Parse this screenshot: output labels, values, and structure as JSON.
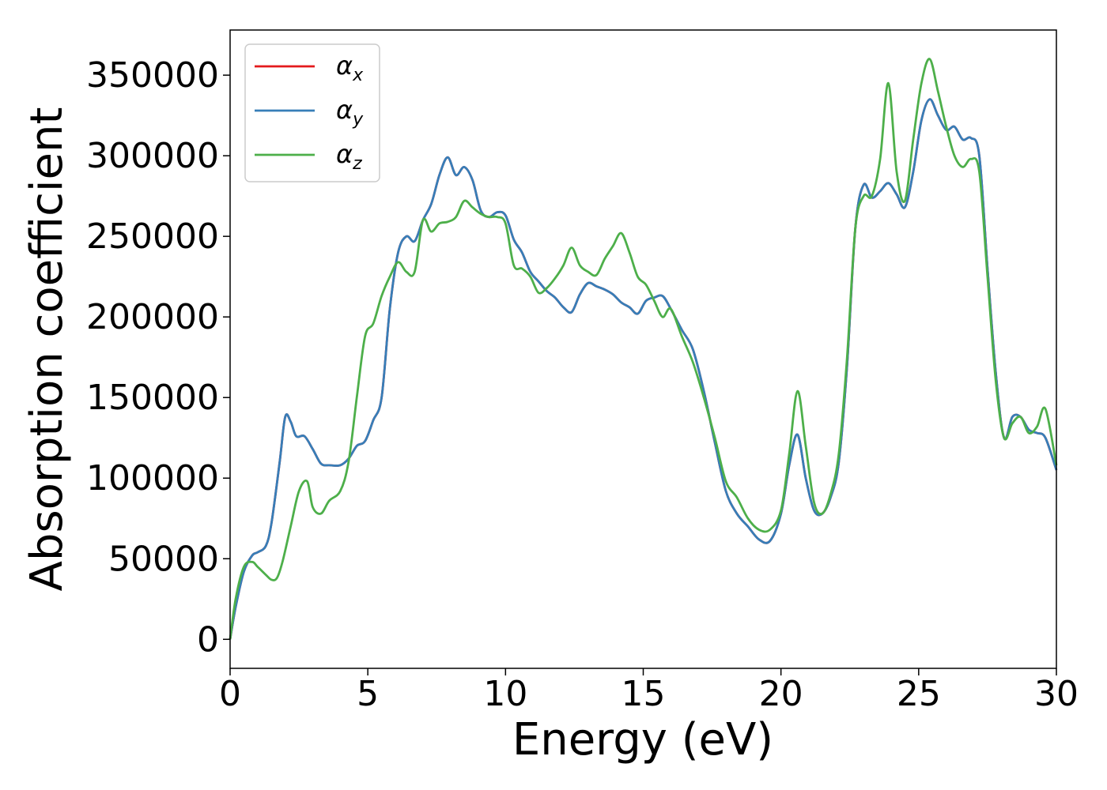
{
  "chart_data": {
    "type": "line",
    "xlabel": "Energy (eV)",
    "ylabel": "Absorption coefficient",
    "xlim": [
      0,
      30
    ],
    "ylim": [
      -18000,
      378000
    ],
    "xticks": [
      0,
      5,
      10,
      15,
      20,
      25,
      30
    ],
    "xtick_labels": [
      "0",
      "5",
      "10",
      "15",
      "20",
      "25",
      "30"
    ],
    "yticks": [
      0,
      50000,
      100000,
      150000,
      200000,
      250000,
      300000,
      350000
    ],
    "ytick_labels": [
      "0",
      "50000",
      "100000",
      "150000",
      "200000",
      "250000",
      "300000",
      "350000"
    ],
    "grid": false,
    "legend_position": "top-left",
    "series": [
      {
        "name": "α",
        "subscript": "x",
        "color": "#e41a1c",
        "x": [
          0,
          0.2,
          0.5,
          0.8,
          1.0,
          1.3,
          1.5,
          1.8,
          2.0,
          2.2,
          2.4,
          2.7,
          3.0,
          3.3,
          3.6,
          4.0,
          4.3,
          4.6,
          4.9,
          5.2,
          5.5,
          5.8,
          6.1,
          6.4,
          6.7,
          7.0,
          7.3,
          7.6,
          7.9,
          8.2,
          8.5,
          8.8,
          9.1,
          9.4,
          9.7,
          10.0,
          10.3,
          10.6,
          10.9,
          11.2,
          11.5,
          11.8,
          12.1,
          12.4,
          12.7,
          13.0,
          13.3,
          13.6,
          13.9,
          14.2,
          14.5,
          14.8,
          15.1,
          15.4,
          15.7,
          16.0,
          16.4,
          16.8,
          17.2,
          17.6,
          18.0,
          18.4,
          18.8,
          19.2,
          19.6,
          20.0,
          20.3,
          20.6,
          20.9,
          21.2,
          21.5,
          21.8,
          22.1,
          22.4,
          22.7,
          23.0,
          23.3,
          23.6,
          23.9,
          24.2,
          24.5,
          24.8,
          25.1,
          25.4,
          25.7,
          26.0,
          26.3,
          26.6,
          26.9,
          27.2,
          27.5,
          27.8,
          28.1,
          28.4,
          28.7,
          29.0,
          29.3,
          29.6,
          30.0
        ],
        "y": [
          0,
          20000,
          42000,
          52000,
          54000,
          58000,
          72000,
          110000,
          138000,
          135000,
          126000,
          126000,
          118000,
          109000,
          108000,
          108000,
          112000,
          120000,
          123000,
          136000,
          150000,
          205000,
          240000,
          250000,
          247000,
          260000,
          270000,
          288000,
          299000,
          288000,
          293000,
          285000,
          266000,
          262000,
          265000,
          263000,
          248000,
          240000,
          228000,
          222000,
          216000,
          212000,
          206000,
          203000,
          214000,
          221000,
          219000,
          217000,
          214000,
          209000,
          206000,
          202000,
          210000,
          212000,
          213000,
          205000,
          192000,
          180000,
          154000,
          122000,
          92000,
          78000,
          70000,
          62000,
          61000,
          78000,
          108000,
          127000,
          100000,
          80000,
          78000,
          88000,
          110000,
          170000,
          255000,
          282000,
          274000,
          278000,
          283000,
          276000,
          268000,
          290000,
          322000,
          335000,
          325000,
          316000,
          318000,
          310000,
          311000,
          300000,
          230000,
          165000,
          125000,
          138000,
          138000,
          130000,
          128000,
          125000,
          105000
        ]
      },
      {
        "name": "α",
        "subscript": "y",
        "color": "#377eb8",
        "x": [
          0,
          0.2,
          0.5,
          0.8,
          1.0,
          1.3,
          1.5,
          1.8,
          2.0,
          2.2,
          2.4,
          2.7,
          3.0,
          3.3,
          3.6,
          4.0,
          4.3,
          4.6,
          4.9,
          5.2,
          5.5,
          5.8,
          6.1,
          6.4,
          6.7,
          7.0,
          7.3,
          7.6,
          7.9,
          8.2,
          8.5,
          8.8,
          9.1,
          9.4,
          9.7,
          10.0,
          10.3,
          10.6,
          10.9,
          11.2,
          11.5,
          11.8,
          12.1,
          12.4,
          12.7,
          13.0,
          13.3,
          13.6,
          13.9,
          14.2,
          14.5,
          14.8,
          15.1,
          15.4,
          15.7,
          16.0,
          16.4,
          16.8,
          17.2,
          17.6,
          18.0,
          18.4,
          18.8,
          19.2,
          19.6,
          20.0,
          20.3,
          20.6,
          20.9,
          21.2,
          21.5,
          21.8,
          22.1,
          22.4,
          22.7,
          23.0,
          23.3,
          23.6,
          23.9,
          24.2,
          24.5,
          24.8,
          25.1,
          25.4,
          25.7,
          26.0,
          26.3,
          26.6,
          26.9,
          27.2,
          27.5,
          27.8,
          28.1,
          28.4,
          28.7,
          29.0,
          29.3,
          29.6,
          30.0
        ],
        "y": [
          0,
          20000,
          42000,
          52000,
          54000,
          58000,
          72000,
          110000,
          138000,
          135000,
          126000,
          126000,
          118000,
          109000,
          108000,
          108000,
          112000,
          120000,
          123000,
          136000,
          150000,
          205000,
          240000,
          250000,
          247000,
          260000,
          270000,
          288000,
          299000,
          288000,
          293000,
          285000,
          266000,
          262000,
          265000,
          263000,
          248000,
          240000,
          228000,
          222000,
          216000,
          212000,
          206000,
          203000,
          214000,
          221000,
          219000,
          217000,
          214000,
          209000,
          206000,
          202000,
          210000,
          212000,
          213000,
          205000,
          192000,
          180000,
          154000,
          122000,
          92000,
          78000,
          70000,
          62000,
          61000,
          78000,
          108000,
          127000,
          100000,
          80000,
          78000,
          88000,
          110000,
          170000,
          255000,
          282000,
          274000,
          278000,
          283000,
          276000,
          268000,
          290000,
          322000,
          335000,
          325000,
          316000,
          318000,
          310000,
          311000,
          300000,
          230000,
          165000,
          125000,
          138000,
          138000,
          130000,
          128000,
          125000,
          105000
        ]
      },
      {
        "name": "α",
        "subscript": "z",
        "color": "#4daf4a",
        "x": [
          0,
          0.2,
          0.5,
          0.8,
          1.0,
          1.3,
          1.5,
          1.7,
          1.9,
          2.2,
          2.5,
          2.8,
          3.0,
          3.3,
          3.6,
          4.0,
          4.3,
          4.6,
          4.9,
          5.2,
          5.5,
          5.8,
          6.1,
          6.4,
          6.7,
          7.0,
          7.3,
          7.6,
          7.9,
          8.2,
          8.5,
          8.8,
          9.1,
          9.4,
          9.7,
          10.0,
          10.3,
          10.6,
          10.9,
          11.2,
          11.5,
          11.8,
          12.1,
          12.4,
          12.7,
          13.0,
          13.3,
          13.6,
          13.9,
          14.2,
          14.5,
          14.8,
          15.1,
          15.4,
          15.7,
          16.0,
          16.4,
          16.8,
          17.2,
          17.6,
          18.0,
          18.4,
          18.8,
          19.2,
          19.6,
          20.0,
          20.3,
          20.6,
          20.9,
          21.2,
          21.5,
          21.8,
          22.1,
          22.4,
          22.7,
          23.0,
          23.3,
          23.6,
          23.9,
          24.2,
          24.5,
          24.8,
          25.1,
          25.4,
          25.7,
          26.0,
          26.3,
          26.6,
          26.9,
          27.2,
          27.5,
          27.8,
          28.1,
          28.4,
          28.7,
          29.0,
          29.3,
          29.6,
          30.0
        ],
        "y": [
          0,
          25000,
          45000,
          48000,
          45000,
          40000,
          37000,
          38000,
          48000,
          70000,
          92000,
          98000,
          82000,
          78000,
          86000,
          92000,
          110000,
          150000,
          188000,
          196000,
          213000,
          225000,
          234000,
          228000,
          228000,
          260000,
          253000,
          258000,
          259000,
          262000,
          272000,
          268000,
          264000,
          262000,
          262000,
          258000,
          232000,
          230000,
          225000,
          215000,
          218000,
          224000,
          232000,
          243000,
          232000,
          228000,
          226000,
          236000,
          244000,
          252000,
          240000,
          225000,
          220000,
          210000,
          200000,
          205000,
          188000,
          172000,
          150000,
          125000,
          98000,
          88000,
          75000,
          68000,
          68000,
          80000,
          115000,
          154000,
          120000,
          85000,
          78000,
          90000,
          115000,
          175000,
          255000,
          275000,
          275000,
          298000,
          345000,
          290000,
          272000,
          310000,
          345000,
          360000,
          340000,
          318000,
          300000,
          293000,
          298000,
          290000,
          225000,
          160000,
          125000,
          134000,
          138000,
          128000,
          132000,
          143000,
          108000
        ]
      }
    ]
  }
}
